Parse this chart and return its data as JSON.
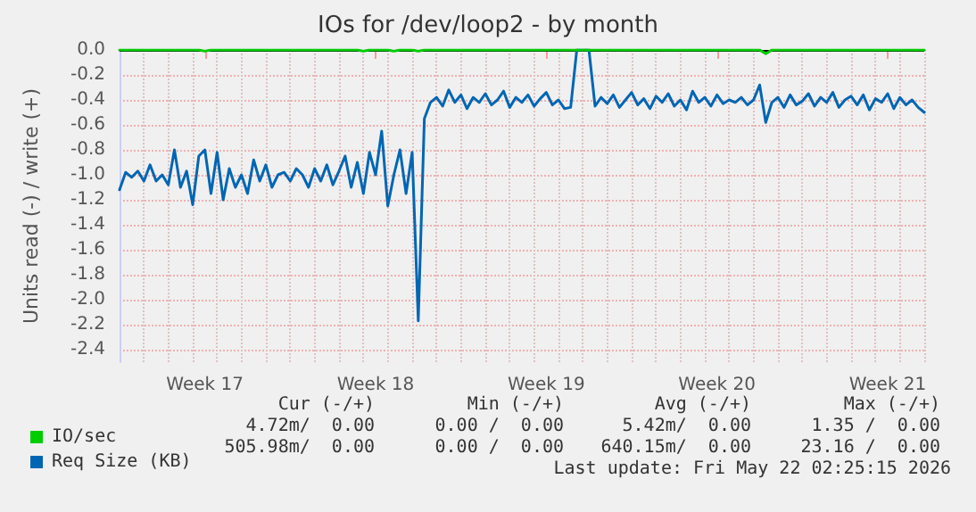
{
  "chart_data": {
    "type": "line",
    "title": "IOs for /dev/loop2 - by month",
    "ylabel": "Units read (-) / write (+)",
    "categories": [
      null,
      null,
      null,
      null,
      null,
      null,
      null,
      null,
      null,
      null,
      null,
      null,
      null,
      null,
      "Week 17",
      null,
      null,
      null,
      null,
      null,
      null,
      null,
      null,
      null,
      null,
      null,
      null,
      null,
      null,
      null,
      null,
      null,
      null,
      null,
      null,
      null,
      null,
      null,
      null,
      null,
      null,
      null,
      "Week 18",
      null,
      null,
      null,
      null,
      null,
      null,
      null,
      null,
      null,
      null,
      null,
      null,
      null,
      null,
      null,
      null,
      null,
      null,
      null,
      null,
      null,
      null,
      null,
      null,
      null,
      null,
      null,
      "Week 19",
      null,
      null,
      null,
      null,
      null,
      null,
      null,
      null,
      null,
      null,
      null,
      null,
      null,
      null,
      null,
      null,
      null,
      null,
      null,
      null,
      null,
      null,
      null,
      null,
      null,
      null,
      null,
      "Week 20",
      null,
      null,
      null,
      null,
      null,
      null,
      null,
      null,
      null,
      null,
      null,
      null,
      null,
      null,
      null,
      null,
      null,
      null,
      null,
      null,
      null,
      null,
      null,
      null,
      null,
      null,
      null,
      "Week 21",
      null,
      null,
      null,
      null,
      null,
      null
    ],
    "ylim": [
      -2.5,
      0
    ],
    "yticks": [
      {
        "value": 0,
        "label": "0.0"
      },
      {
        "value": -0.2,
        "label": "-0.2"
      },
      {
        "value": -0.4,
        "label": "-0.4"
      },
      {
        "value": -0.6,
        "label": "-0.6"
      },
      {
        "value": -0.8,
        "label": "-0.8"
      },
      {
        "value": -1,
        "label": "-1.0"
      },
      {
        "value": -1.2,
        "label": "-1.2"
      },
      {
        "value": -1.4,
        "label": "-1.4"
      },
      {
        "value": -1.6,
        "label": "-1.6"
      },
      {
        "value": -1.8,
        "label": "-1.8"
      },
      {
        "value": -2,
        "label": "-2.0"
      },
      {
        "value": -2.2,
        "label": "-2.2"
      },
      {
        "value": -2.4,
        "label": "-2.4"
      }
    ],
    "grid": true,
    "legend": "bottom left",
    "marker": "none",
    "line_style": "solid",
    "ref_lines": [
      {
        "axis": "y",
        "value": 0,
        "color": "#000000"
      }
    ],
    "series": [
      {
        "name": "IO/sec",
        "color": "#00cc00",
        "values": [
          0,
          0,
          0,
          0,
          0,
          0,
          0,
          0,
          0,
          0,
          0,
          0,
          0,
          0,
          -0.01,
          0,
          0,
          0,
          0,
          0,
          0,
          0,
          0,
          0,
          0,
          0,
          0,
          0,
          0,
          0,
          0,
          0,
          0,
          0,
          0,
          0,
          0,
          0,
          0,
          0,
          -0.01,
          0,
          0,
          0,
          0,
          -0.01,
          0,
          0,
          0,
          -0.01,
          0,
          0,
          0,
          0,
          0,
          0,
          0,
          0,
          0,
          0,
          0,
          0,
          0,
          0,
          0,
          0,
          0,
          0,
          0,
          0,
          0,
          0,
          0,
          0,
          0,
          0,
          0,
          0,
          0,
          0,
          0,
          0,
          0,
          0,
          0,
          0,
          0,
          0,
          0,
          0,
          0,
          0,
          0,
          0,
          0,
          0,
          0,
          0,
          0,
          0,
          0,
          0,
          0,
          0,
          0,
          0,
          -0.03,
          0,
          0,
          0,
          0,
          0,
          0,
          0,
          0,
          0,
          0,
          0,
          0,
          0,
          0,
          0,
          0,
          0,
          0,
          0,
          0,
          0,
          0,
          0,
          0,
          0,
          0
        ]
      },
      {
        "name": "Req Size (KB)",
        "color": "#0066b3",
        "values": [
          -1.12,
          -0.98,
          -1.02,
          -0.97,
          -1.05,
          -0.92,
          -1.05,
          -1.0,
          -1.08,
          -0.8,
          -1.1,
          -0.97,
          -1.24,
          -0.85,
          -0.8,
          -1.15,
          -0.82,
          -1.2,
          -0.95,
          -1.1,
          -1.0,
          -1.15,
          -0.88,
          -1.05,
          -0.92,
          -1.1,
          -1.0,
          -0.98,
          -1.05,
          -0.95,
          -1.0,
          -1.1,
          -0.95,
          -1.05,
          -0.92,
          -1.08,
          -0.97,
          -0.85,
          -1.1,
          -0.9,
          -1.15,
          -0.82,
          -1.0,
          -0.65,
          -1.25,
          -1.0,
          -0.8,
          -1.15,
          -0.82,
          -2.17,
          -0.55,
          -0.42,
          -0.38,
          -0.45,
          -0.32,
          -0.42,
          -0.36,
          -0.47,
          -0.38,
          -0.42,
          -0.35,
          -0.44,
          -0.4,
          -0.33,
          -0.46,
          -0.38,
          -0.42,
          -0.36,
          -0.45,
          -0.39,
          -0.34,
          -0.44,
          -0.4,
          -0.47,
          -0.46,
          0,
          0,
          0,
          -0.45,
          -0.38,
          -0.43,
          -0.36,
          -0.46,
          -0.4,
          -0.34,
          -0.44,
          -0.39,
          -0.47,
          -0.37,
          -0.42,
          -0.35,
          -0.45,
          -0.4,
          -0.48,
          -0.33,
          -0.42,
          -0.38,
          -0.45,
          -0.36,
          -0.43,
          -0.4,
          -0.42,
          -0.38,
          -0.44,
          -0.4,
          -0.28,
          -0.58,
          -0.42,
          -0.38,
          -0.46,
          -0.36,
          -0.44,
          -0.41,
          -0.35,
          -0.45,
          -0.38,
          -0.42,
          -0.34,
          -0.46,
          -0.4,
          -0.37,
          -0.44,
          -0.36,
          -0.48,
          -0.39,
          -0.42,
          -0.35,
          -0.47,
          -0.38,
          -0.44,
          -0.4,
          -0.46,
          -0.5
        ]
      }
    ],
    "annotations": [
      "Cur (-/+)",
      "Min (-/+)",
      "Avg (-/+)",
      "Max (-/+)",
      "4.72m/  0.00",
      "0.00 /  0.00",
      "5.42m/  0.00",
      "1.35 /  0.00",
      "505.98m/  0.00",
      "0.00 /  0.00",
      "640.15m/  0.00",
      "23.16 /  0.00",
      "Last update: Fri May 22 02:25:15 2026"
    ]
  }
}
